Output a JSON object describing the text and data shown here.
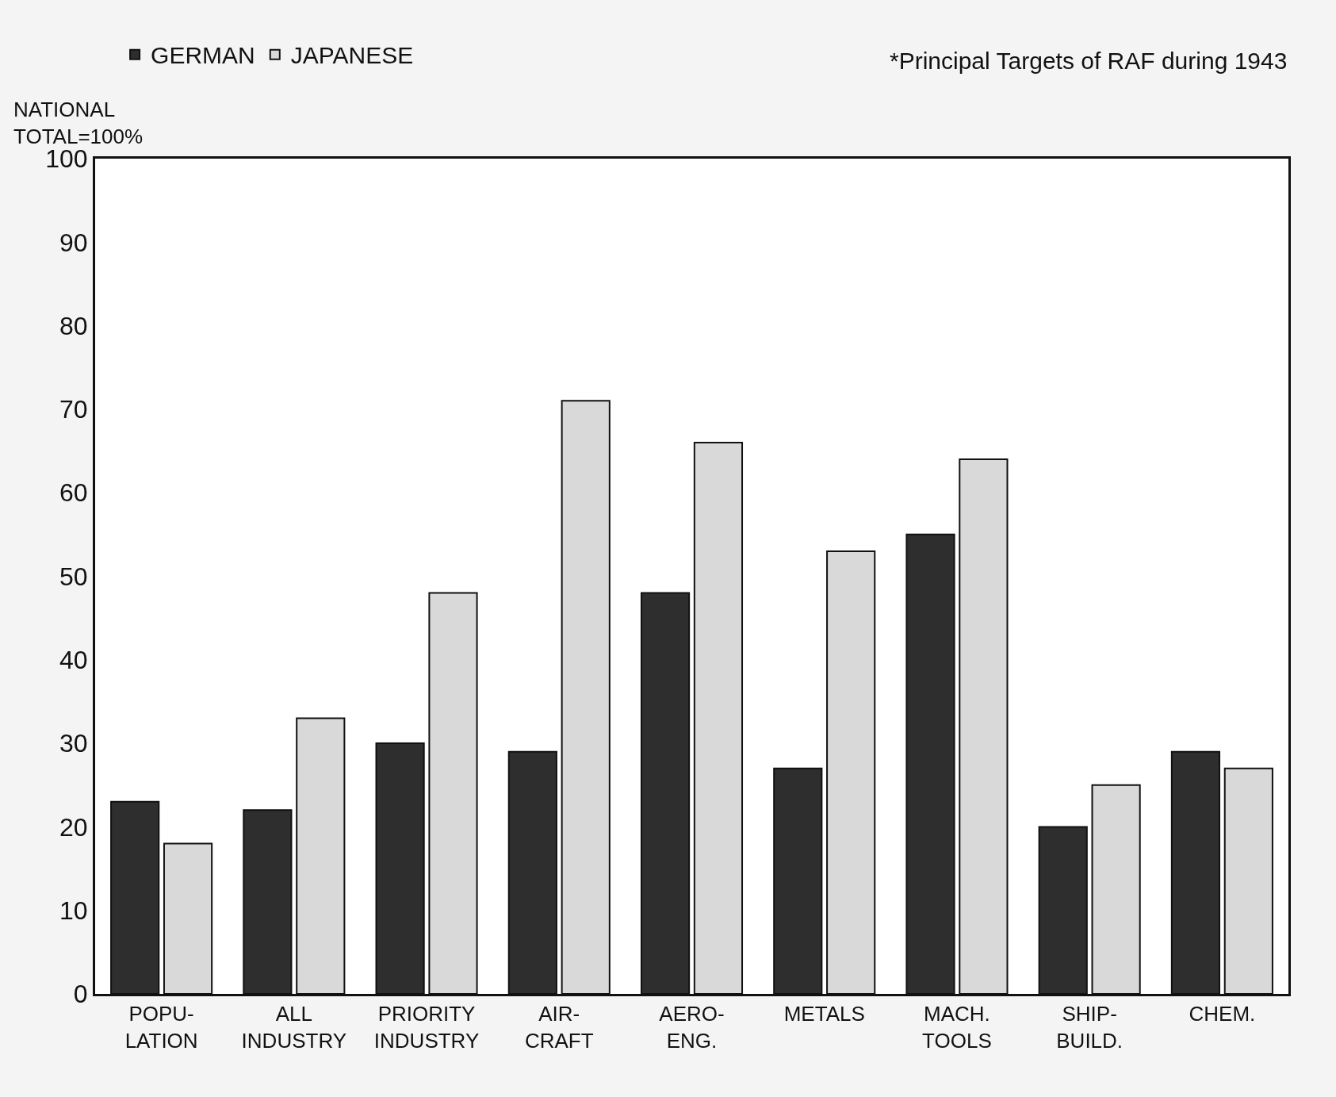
{
  "chart_data": {
    "type": "bar",
    "ylabel": "NATIONAL\nTOTAL=100%",
    "categories": [
      "POPU-\nLATION",
      "ALL\nINDUSTRY",
      "PRIORITY\nINDUSTRY",
      "AIR-\nCRAFT",
      "AERO-\nENG.",
      "METALS",
      "MACH.\nTOOLS",
      "SHIP-\nBUILD.",
      "CHEM."
    ],
    "series": [
      {
        "name": "GERMAN",
        "color": "#2e2e2e",
        "values": [
          23,
          22,
          30,
          29,
          48,
          27,
          55,
          20,
          29
        ]
      },
      {
        "name": "JAPANESE",
        "color": "#d9d9d9",
        "values": [
          18,
          33,
          48,
          71,
          66,
          53,
          64,
          25,
          27
        ]
      }
    ],
    "ylim": [
      0,
      100
    ],
    "yticks": [
      0,
      10,
      20,
      30,
      40,
      50,
      60,
      70,
      80,
      90,
      100
    ],
    "legend": "top",
    "annotations": [
      "*Principal Targets of RAF during 1943"
    ]
  }
}
